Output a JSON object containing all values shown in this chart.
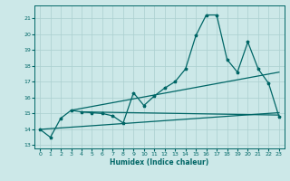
{
  "xlabel": "Humidex (Indice chaleur)",
  "bg_color": "#cce8e8",
  "line_color": "#006666",
  "grid_color": "#aacfcf",
  "xlim": [
    -0.5,
    23.5
  ],
  "ylim": [
    12.8,
    21.8
  ],
  "xticks": [
    0,
    1,
    2,
    3,
    4,
    5,
    6,
    7,
    8,
    9,
    10,
    11,
    12,
    13,
    14,
    15,
    16,
    17,
    18,
    19,
    20,
    21,
    22,
    23
  ],
  "yticks": [
    13,
    14,
    15,
    16,
    17,
    18,
    19,
    20,
    21
  ],
  "series": [
    [
      0,
      14.0
    ],
    [
      1,
      13.5
    ],
    [
      2,
      14.7
    ],
    [
      3,
      15.2
    ],
    [
      4,
      15.1
    ],
    [
      5,
      15.05
    ],
    [
      6,
      15.0
    ],
    [
      7,
      14.85
    ],
    [
      8,
      14.4
    ],
    [
      9,
      16.3
    ],
    [
      10,
      15.5
    ],
    [
      11,
      16.1
    ],
    [
      12,
      16.6
    ],
    [
      13,
      17.0
    ],
    [
      14,
      17.8
    ],
    [
      15,
      19.9
    ],
    [
      16,
      21.2
    ],
    [
      17,
      21.2
    ],
    [
      18,
      18.4
    ],
    [
      19,
      17.6
    ],
    [
      20,
      19.5
    ],
    [
      21,
      17.8
    ],
    [
      22,
      16.9
    ],
    [
      23,
      14.8
    ]
  ],
  "line2": [
    [
      0,
      14.0
    ],
    [
      23,
      15.05
    ]
  ],
  "line3": [
    [
      3,
      15.2
    ],
    [
      23,
      17.6
    ]
  ],
  "line4": [
    [
      4,
      15.1
    ],
    [
      23,
      14.9
    ]
  ]
}
